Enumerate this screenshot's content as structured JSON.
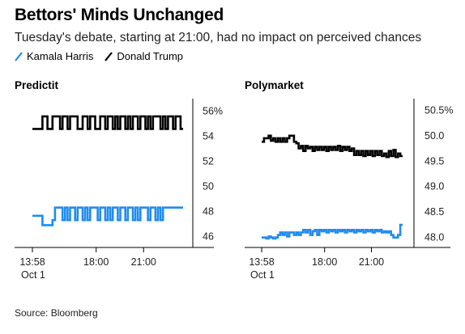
{
  "header": {
    "title": "Bettors' Minds Unchanged",
    "subtitle": "Tuesday's debate, starting at 21:00, had no impact on perceived chances"
  },
  "legend": [
    {
      "label": "Kamala Harris",
      "color": "#1f8cf0"
    },
    {
      "label": "Donald Trump",
      "color": "#000000"
    }
  ],
  "source": "Source: Bloomberg",
  "chart_data": [
    {
      "type": "line",
      "title": "Predictit",
      "x_tick_labels": [
        "13:58",
        "18:00",
        "21:00"
      ],
      "x_tick_sublabel": "Oct 1",
      "x_range": [
        "13:58",
        "23:30"
      ],
      "ylim": [
        45.5,
        56.5
      ],
      "y_ticks": [
        56,
        54,
        52,
        50,
        48,
        46
      ],
      "y_tick_labels": [
        "56%",
        "54",
        "52",
        "50",
        "48",
        "46"
      ],
      "grid": false,
      "series": [
        {
          "name": "Donald Trump",
          "color": "#000000",
          "x_start": "13:58",
          "x_end": "23:30",
          "low": 54.6,
          "high": 55.6,
          "values": [
            0,
            0,
            0,
            0,
            1,
            1,
            0,
            0,
            1,
            1,
            1,
            0,
            1,
            1,
            0,
            1,
            1,
            1,
            0,
            0,
            1,
            1,
            0,
            1,
            1,
            0,
            0,
            1,
            1,
            0,
            1,
            1,
            0,
            1,
            0,
            1,
            1,
            0,
            1,
            0,
            1,
            1,
            0,
            1,
            1,
            0,
            1,
            0,
            1,
            1,
            1,
            0,
            1,
            0,
            1,
            1,
            0,
            1,
            1,
            0
          ]
        },
        {
          "name": "Kamala Harris",
          "color": "#1f8cf0",
          "x_start": "13:58",
          "x_end": "23:30",
          "low": 47.3,
          "high": 48.3,
          "values": [
            0.35,
            0.35,
            0.35,
            0.35,
            -0.4,
            -0.4,
            -0.4,
            -0.4,
            0,
            1,
            1,
            1,
            0,
            1,
            0,
            1,
            1,
            0,
            1,
            1,
            0,
            1,
            0,
            1,
            1,
            1,
            0,
            1,
            1,
            0,
            1,
            0,
            1,
            1,
            0,
            1,
            1,
            0,
            1,
            1,
            0,
            1,
            0,
            1,
            1,
            1,
            0,
            1,
            1,
            0,
            1,
            0,
            1,
            1,
            1,
            1,
            1,
            1,
            1,
            1
          ]
        }
      ]
    },
    {
      "type": "line",
      "title": "Polymarket",
      "x_tick_labels": [
        "13:58",
        "18:00",
        "21:00"
      ],
      "x_tick_sublabel": "Oct 1",
      "x_range": [
        "13:58",
        "23:00"
      ],
      "ylim": [
        47.9,
        50.6
      ],
      "y_ticks": [
        50.5,
        50.0,
        49.5,
        49.0,
        48.5,
        48.0
      ],
      "y_tick_labels": [
        "50.5%",
        "50.0",
        "49.5",
        "49.0",
        "48.5",
        "48.0"
      ],
      "grid": false,
      "series": [
        {
          "name": "Donald Trump",
          "color": "#000000",
          "x_start": "13:58",
          "x_end": "23:00",
          "values": [
            49.88,
            49.95,
            49.95,
            50.0,
            49.9,
            49.95,
            49.88,
            49.95,
            49.88,
            49.95,
            49.88,
            49.95,
            50.0,
            50.0,
            49.88,
            49.85,
            49.75,
            49.8,
            49.7,
            49.8,
            49.75,
            49.78,
            49.7,
            49.78,
            49.72,
            49.78,
            49.72,
            49.78,
            49.7,
            49.78,
            49.72,
            49.78,
            49.72,
            49.8,
            49.7,
            49.78,
            49.72,
            49.78,
            49.7,
            49.75,
            49.62,
            49.7,
            49.62,
            49.7,
            49.6,
            49.7,
            49.62,
            49.7,
            49.6,
            49.7,
            49.62,
            49.7,
            49.6,
            49.65,
            49.58,
            49.7,
            49.6,
            49.72,
            49.58,
            49.65,
            49.6
          ]
        },
        {
          "name": "Kamala Harris",
          "color": "#1f8cf0",
          "x_start": "13:58",
          "x_end": "23:00",
          "values": [
            48.0,
            48.0,
            47.98,
            48.02,
            48.0,
            47.98,
            48.0,
            48.05,
            48.1,
            48.05,
            48.1,
            48.02,
            48.1,
            48.1,
            48.05,
            48.1,
            48.05,
            48.1,
            48.15,
            48.1,
            48.15,
            48.05,
            48.12,
            48.15,
            48.05,
            48.15,
            48.12,
            48.15,
            48.1,
            48.15,
            48.12,
            48.15,
            48.1,
            48.15,
            48.12,
            48.15,
            48.1,
            48.15,
            48.12,
            48.15,
            48.1,
            48.15,
            48.12,
            48.15,
            48.1,
            48.15,
            48.12,
            48.15,
            48.1,
            48.15,
            48.12,
            48.15,
            48.1,
            48.12,
            48.1,
            48.12,
            48.05,
            48.0,
            48.0,
            48.05,
            48.25
          ]
        }
      ]
    }
  ]
}
